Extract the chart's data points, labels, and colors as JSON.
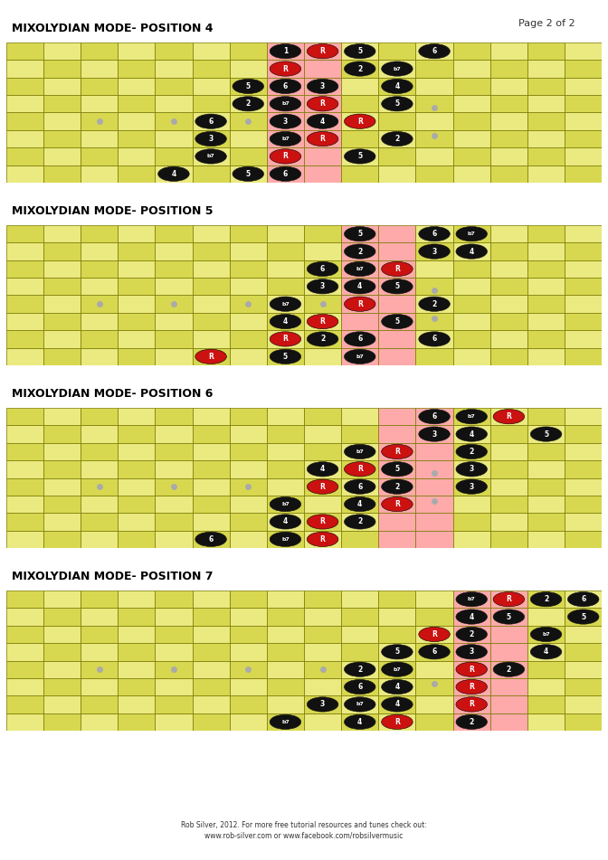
{
  "page_label": "Page 2 of 2",
  "bg_color": "#ffffff",
  "cell_colors": [
    "#eaea80",
    "#d8d850"
  ],
  "highlight_color": "#ffaaaa",
  "grid_color": "#777700",
  "dot_marker_color": "#aaaaaa",
  "num_strings": 8,
  "num_frets": 16,
  "diagrams": [
    {
      "title": "MIXOLYDIAN MODE- POSITION 4",
      "highlight_frets": [
        8,
        9
      ],
      "notes": [
        {
          "string": 1,
          "fret": 8,
          "label": "1",
          "red": false
        },
        {
          "string": 1,
          "fret": 9,
          "label": "R",
          "red": true
        },
        {
          "string": 1,
          "fret": 10,
          "label": "5",
          "red": false
        },
        {
          "string": 1,
          "fret": 12,
          "label": "6",
          "red": false
        },
        {
          "string": 2,
          "fret": 8,
          "label": "R",
          "red": true
        },
        {
          "string": 2,
          "fret": 10,
          "label": "2",
          "red": false
        },
        {
          "string": 2,
          "fret": 11,
          "label": "b7",
          "red": false
        },
        {
          "string": 3,
          "fret": 7,
          "label": "5",
          "red": false
        },
        {
          "string": 3,
          "fret": 8,
          "label": "6",
          "red": false
        },
        {
          "string": 3,
          "fret": 9,
          "label": "3",
          "red": false
        },
        {
          "string": 3,
          "fret": 11,
          "label": "4",
          "red": false
        },
        {
          "string": 4,
          "fret": 7,
          "label": "2",
          "red": false
        },
        {
          "string": 4,
          "fret": 8,
          "label": "b7",
          "red": false
        },
        {
          "string": 4,
          "fret": 9,
          "label": "R",
          "red": true
        },
        {
          "string": 4,
          "fret": 11,
          "label": "5",
          "red": false
        },
        {
          "string": 5,
          "fret": 6,
          "label": "6",
          "red": false
        },
        {
          "string": 5,
          "fret": 8,
          "label": "3",
          "red": false
        },
        {
          "string": 5,
          "fret": 9,
          "label": "4",
          "red": false
        },
        {
          "string": 5,
          "fret": 10,
          "label": "R",
          "red": true
        },
        {
          "string": 6,
          "fret": 6,
          "label": "3",
          "red": false
        },
        {
          "string": 6,
          "fret": 8,
          "label": "b7",
          "red": false
        },
        {
          "string": 6,
          "fret": 9,
          "label": "R",
          "red": true
        },
        {
          "string": 6,
          "fret": 11,
          "label": "2",
          "red": false
        },
        {
          "string": 7,
          "fret": 6,
          "label": "b7",
          "red": false
        },
        {
          "string": 7,
          "fret": 8,
          "label": "R",
          "red": true
        },
        {
          "string": 7,
          "fret": 10,
          "label": "5",
          "red": false
        },
        {
          "string": 8,
          "fret": 5,
          "label": "4",
          "red": false
        },
        {
          "string": 8,
          "fret": 7,
          "label": "5",
          "red": false
        },
        {
          "string": 8,
          "fret": 8,
          "label": "6",
          "red": false
        }
      ]
    },
    {
      "title": "MIXOLYDIAN MODE- POSITION 5",
      "highlight_frets": [
        10,
        11
      ],
      "notes": [
        {
          "string": 1,
          "fret": 10,
          "label": "5",
          "red": false
        },
        {
          "string": 1,
          "fret": 12,
          "label": "6",
          "red": false
        },
        {
          "string": 1,
          "fret": 13,
          "label": "b7",
          "red": false
        },
        {
          "string": 2,
          "fret": 10,
          "label": "2",
          "red": false
        },
        {
          "string": 2,
          "fret": 12,
          "label": "3",
          "red": false
        },
        {
          "string": 2,
          "fret": 13,
          "label": "4",
          "red": false
        },
        {
          "string": 3,
          "fret": 9,
          "label": "6",
          "red": false
        },
        {
          "string": 3,
          "fret": 10,
          "label": "b7",
          "red": false
        },
        {
          "string": 3,
          "fret": 11,
          "label": "R",
          "red": true
        },
        {
          "string": 4,
          "fret": 9,
          "label": "3",
          "red": false
        },
        {
          "string": 4,
          "fret": 10,
          "label": "4",
          "red": false
        },
        {
          "string": 4,
          "fret": 11,
          "label": "5",
          "red": false
        },
        {
          "string": 5,
          "fret": 8,
          "label": "b7",
          "red": false
        },
        {
          "string": 5,
          "fret": 10,
          "label": "R",
          "red": true
        },
        {
          "string": 5,
          "fret": 12,
          "label": "2",
          "red": false
        },
        {
          "string": 6,
          "fret": 8,
          "label": "4",
          "red": false
        },
        {
          "string": 6,
          "fret": 9,
          "label": "R",
          "red": true
        },
        {
          "string": 6,
          "fret": 11,
          "label": "5",
          "red": false
        },
        {
          "string": 7,
          "fret": 8,
          "label": "R",
          "red": true
        },
        {
          "string": 7,
          "fret": 9,
          "label": "2",
          "red": false
        },
        {
          "string": 7,
          "fret": 10,
          "label": "6",
          "red": false
        },
        {
          "string": 7,
          "fret": 12,
          "label": "6",
          "red": false
        },
        {
          "string": 8,
          "fret": 6,
          "label": "R",
          "red": true
        },
        {
          "string": 8,
          "fret": 8,
          "label": "5",
          "red": false
        },
        {
          "string": 8,
          "fret": 10,
          "label": "b7",
          "red": false
        }
      ]
    },
    {
      "title": "MIXOLYDIAN MODE- POSITION 6",
      "highlight_frets": [
        11,
        12
      ],
      "notes": [
        {
          "string": 1,
          "fret": 12,
          "label": "6",
          "red": false
        },
        {
          "string": 1,
          "fret": 13,
          "label": "b7",
          "red": false
        },
        {
          "string": 1,
          "fret": 14,
          "label": "R",
          "red": true
        },
        {
          "string": 2,
          "fret": 12,
          "label": "3",
          "red": false
        },
        {
          "string": 2,
          "fret": 13,
          "label": "4",
          "red": false
        },
        {
          "string": 2,
          "fret": 15,
          "label": "5",
          "red": false
        },
        {
          "string": 3,
          "fret": 10,
          "label": "b7",
          "red": false
        },
        {
          "string": 3,
          "fret": 11,
          "label": "R",
          "red": true
        },
        {
          "string": 3,
          "fret": 13,
          "label": "2",
          "red": false
        },
        {
          "string": 4,
          "fret": 9,
          "label": "4",
          "red": false
        },
        {
          "string": 4,
          "fret": 10,
          "label": "R",
          "red": true
        },
        {
          "string": 4,
          "fret": 11,
          "label": "5",
          "red": false
        },
        {
          "string": 4,
          "fret": 13,
          "label": "3",
          "red": false
        },
        {
          "string": 5,
          "fret": 9,
          "label": "R",
          "red": true
        },
        {
          "string": 5,
          "fret": 10,
          "label": "6",
          "red": false
        },
        {
          "string": 5,
          "fret": 11,
          "label": "2",
          "red": false
        },
        {
          "string": 5,
          "fret": 13,
          "label": "3",
          "red": false
        },
        {
          "string": 6,
          "fret": 8,
          "label": "b7",
          "red": false
        },
        {
          "string": 6,
          "fret": 10,
          "label": "4",
          "red": false
        },
        {
          "string": 6,
          "fret": 11,
          "label": "R",
          "red": true
        },
        {
          "string": 7,
          "fret": 8,
          "label": "4",
          "red": false
        },
        {
          "string": 7,
          "fret": 9,
          "label": "R",
          "red": true
        },
        {
          "string": 7,
          "fret": 10,
          "label": "2",
          "red": false
        },
        {
          "string": 8,
          "fret": 6,
          "label": "6",
          "red": false
        },
        {
          "string": 8,
          "fret": 8,
          "label": "b7",
          "red": false
        },
        {
          "string": 8,
          "fret": 9,
          "label": "R",
          "red": true
        }
      ]
    },
    {
      "title": "MIXOLYDIAN MODE- POSITION 7",
      "highlight_frets": [
        13,
        14
      ],
      "notes": [
        {
          "string": 1,
          "fret": 13,
          "label": "b7",
          "red": false
        },
        {
          "string": 1,
          "fret": 14,
          "label": "R",
          "red": true
        },
        {
          "string": 1,
          "fret": 15,
          "label": "2",
          "red": false
        },
        {
          "string": 1,
          "fret": 16,
          "label": "6",
          "red": false
        },
        {
          "string": 2,
          "fret": 13,
          "label": "4",
          "red": false
        },
        {
          "string": 2,
          "fret": 14,
          "label": "5",
          "red": false
        },
        {
          "string": 2,
          "fret": 16,
          "label": "5",
          "red": false
        },
        {
          "string": 3,
          "fret": 12,
          "label": "R",
          "red": true
        },
        {
          "string": 3,
          "fret": 13,
          "label": "2",
          "red": false
        },
        {
          "string": 3,
          "fret": 15,
          "label": "b7",
          "red": false
        },
        {
          "string": 4,
          "fret": 11,
          "label": "5",
          "red": false
        },
        {
          "string": 4,
          "fret": 12,
          "label": "6",
          "red": false
        },
        {
          "string": 4,
          "fret": 13,
          "label": "3",
          "red": false
        },
        {
          "string": 4,
          "fret": 15,
          "label": "4",
          "red": false
        },
        {
          "string": 5,
          "fret": 10,
          "label": "2",
          "red": false
        },
        {
          "string": 5,
          "fret": 11,
          "label": "b7",
          "red": false
        },
        {
          "string": 5,
          "fret": 13,
          "label": "R",
          "red": true
        },
        {
          "string": 5,
          "fret": 14,
          "label": "2",
          "red": false
        },
        {
          "string": 6,
          "fret": 10,
          "label": "6",
          "red": false
        },
        {
          "string": 6,
          "fret": 11,
          "label": "4",
          "red": false
        },
        {
          "string": 6,
          "fret": 13,
          "label": "R",
          "red": true
        },
        {
          "string": 7,
          "fret": 9,
          "label": "3",
          "red": false
        },
        {
          "string": 7,
          "fret": 10,
          "label": "b7",
          "red": false
        },
        {
          "string": 7,
          "fret": 11,
          "label": "4",
          "red": false
        },
        {
          "string": 7,
          "fret": 13,
          "label": "R",
          "red": true
        },
        {
          "string": 8,
          "fret": 8,
          "label": "b7",
          "red": false
        },
        {
          "string": 8,
          "fret": 10,
          "label": "4",
          "red": false
        },
        {
          "string": 8,
          "fret": 11,
          "label": "R",
          "red": true
        },
        {
          "string": 8,
          "fret": 13,
          "label": "2",
          "red": false
        }
      ]
    }
  ],
  "footer_line1": "Rob Silver, 2012. For more free tutorial resources and tunes check out:",
  "footer_line2": "www.rob-silver.com or www.facebook.com/robsilvermusic"
}
